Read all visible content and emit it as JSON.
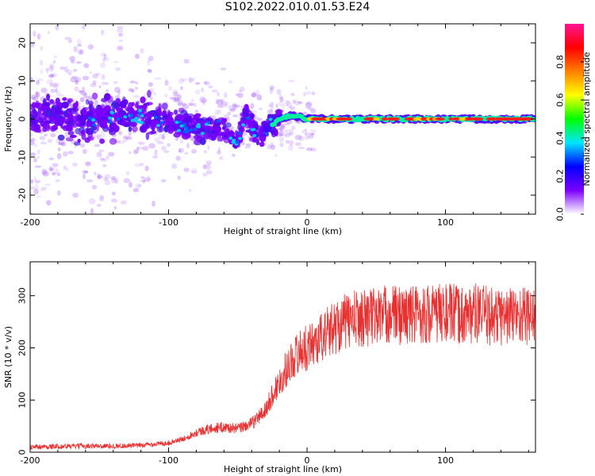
{
  "title": "S102.2022.010.01.53.E24",
  "chart_data": [
    {
      "type": "heatmap",
      "xlabel": "Height of straight line (km)",
      "ylabel": "Frequency (Hz)",
      "xlim": [
        -200,
        165
      ],
      "ylim": [
        -25,
        25
      ],
      "xticks": [
        -200,
        -100,
        0,
        100
      ],
      "yticks": [
        -20,
        -10,
        0,
        10,
        20
      ],
      "colorbar": {
        "label": "Normalized spectral amplitude",
        "range": [
          0,
          1
        ],
        "ticks": [
          "0.0",
          "0.2",
          "0.4",
          "0.6",
          "0.8"
        ],
        "colors": [
          "#ffffff",
          "#7c00ff",
          "#0000ff",
          "#00e5ff",
          "#00ff00",
          "#ffff00",
          "#ff7f00",
          "#ff0000",
          "#ff1493"
        ]
      },
      "ridge": {
        "description_values": "frequency of signal peak along height",
        "x": [
          -200,
          -150,
          -120,
          -100,
          -80,
          -60,
          -50,
          -45,
          -40,
          -35,
          -30,
          -20,
          -10,
          0,
          20,
          50,
          100,
          130,
          165
        ],
        "y": [
          0,
          0,
          1,
          -1,
          -2,
          -3,
          -6,
          2,
          -2,
          -4,
          -3,
          0,
          1,
          0,
          0,
          0,
          0,
          0,
          0
        ]
      }
    },
    {
      "type": "line",
      "xlabel": "Height of straight line (km)",
      "ylabel": "SNR (10 * v/v)",
      "xlim": [
        -200,
        165
      ],
      "ylim": [
        0,
        365
      ],
      "xticks": [
        -200,
        -100,
        0,
        100
      ],
      "yticks": [
        0,
        100,
        200,
        300
      ],
      "color": "#e83030",
      "series": [
        {
          "x": [
            -200,
            -180,
            -160,
            -140,
            -120,
            -100,
            -90,
            -80,
            -70,
            -60,
            -50,
            -40,
            -30,
            -25,
            -20,
            -15,
            -10,
            -5,
            0,
            5,
            10,
            15,
            20,
            25,
            30,
            40,
            50,
            60,
            70,
            80,
            90,
            100,
            110,
            120,
            130,
            140,
            150,
            165
          ],
          "values": [
            10,
            11,
            12,
            12,
            13,
            18,
            25,
            38,
            45,
            48,
            45,
            55,
            80,
            110,
            135,
            160,
            180,
            195,
            200,
            210,
            220,
            230,
            240,
            248,
            252,
            258,
            262,
            265,
            262,
            266,
            264,
            268,
            262,
            266,
            262,
            260,
            263,
            262
          ]
        }
      ]
    }
  ]
}
